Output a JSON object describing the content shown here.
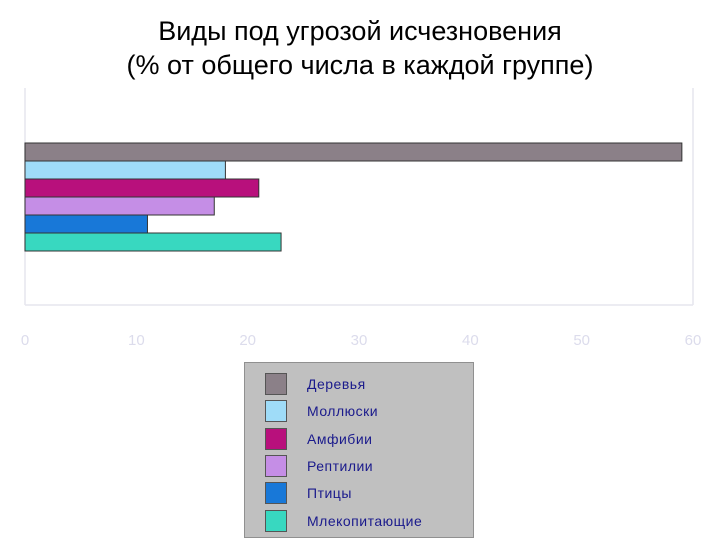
{
  "chart_data": {
    "type": "bar",
    "orientation": "horizontal",
    "title": "Виды под угрозой исчезновения",
    "subtitle": "(% от общего числа в каждой группе)",
    "xlim": [
      0,
      60
    ],
    "x_ticks": [
      "0",
      "10",
      "20",
      "30",
      "40",
      "50",
      "60"
    ],
    "grid": false,
    "legend_position": "bottom-center",
    "series": [
      {
        "name": "Деревья",
        "value": 59,
        "color": "#8b8088"
      },
      {
        "name": "Моллюски",
        "value": 18,
        "color": "#9fdcf8"
      },
      {
        "name": "Амфибии",
        "value": 21,
        "color": "#b8107c"
      },
      {
        "name": "Рептилии",
        "value": 17,
        "color": "#c58ee6"
      },
      {
        "name": "Птицы",
        "value": 11,
        "color": "#1878d8"
      },
      {
        "name": "Млекопитающие",
        "value": 23,
        "color": "#38d8c0"
      }
    ]
  }
}
